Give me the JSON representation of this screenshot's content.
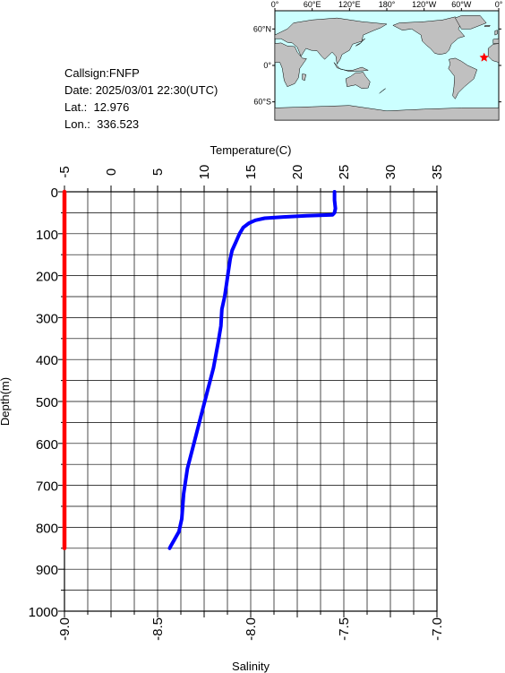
{
  "station": {
    "callsign_line": "Callsign:FNFP",
    "date_label": "Date:",
    "date_value": "2025/03/01 22:30(UTC)",
    "lat_label": "Lat.:",
    "lat_value": "12.976",
    "lon_label": "Lon.:",
    "lon_value": "336.523"
  },
  "map": {
    "top_labels": [
      "0°",
      "60°E",
      "120°E",
      "180°",
      "120°W",
      "60°W",
      "0°"
    ],
    "left_labels": [
      "60°N",
      "0°",
      "60°S"
    ],
    "marker_lon_e": 336.523,
    "marker_lat": 12.976,
    "colors": {
      "ocean": "#ccffff",
      "land": "#c0c0c0",
      "marker": "#ff0000"
    }
  },
  "chart_data": {
    "type": "line",
    "title": "",
    "xlabel": "Temperature(C)",
    "x2label": "Salinity",
    "ylabel": "Depth(m)",
    "temperature_ticks": [
      "-5",
      "0",
      "5",
      "10",
      "15",
      "20",
      "25",
      "30",
      "35"
    ],
    "salinity_ticks": [
      "-9.0",
      "-8.5",
      "-8.0",
      "-7.5",
      "-7.0"
    ],
    "depth_ticks": [
      "0",
      "100",
      "200",
      "300",
      "400",
      "500",
      "600",
      "700",
      "800",
      "900",
      "1000"
    ],
    "xlim_temperature": [
      -5,
      35
    ],
    "xlim_salinity": [
      -9.0,
      -7.0
    ],
    "ylim_depth": [
      0,
      1000
    ],
    "grid": true,
    "series": [
      {
        "variable": "temperature",
        "color": "#0000ff",
        "points": [
          [
            24.0,
            0
          ],
          [
            24.0,
            20
          ],
          [
            24.1,
            40
          ],
          [
            24.0,
            50
          ],
          [
            23.8,
            55
          ],
          [
            21.0,
            57
          ],
          [
            18.5,
            60
          ],
          [
            16.5,
            63
          ],
          [
            15.5,
            68
          ],
          [
            14.8,
            75
          ],
          [
            14.2,
            85
          ],
          [
            13.8,
            100
          ],
          [
            13.4,
            120
          ],
          [
            13.0,
            140
          ],
          [
            12.8,
            160
          ],
          [
            12.6,
            190
          ],
          [
            12.4,
            220
          ],
          [
            12.2,
            250
          ],
          [
            11.9,
            280
          ],
          [
            11.8,
            320
          ],
          [
            11.5,
            360
          ],
          [
            11.0,
            420
          ],
          [
            10.3,
            480
          ],
          [
            9.6,
            540
          ],
          [
            8.9,
            600
          ],
          [
            8.2,
            660
          ],
          [
            7.8,
            720
          ],
          [
            7.6,
            780
          ],
          [
            7.3,
            810
          ],
          [
            6.8,
            830
          ],
          [
            6.4,
            845
          ],
          [
            6.3,
            850
          ]
        ]
      },
      {
        "variable": "salinity",
        "color": "#ff0000",
        "points": [
          [
            -9.0,
            0
          ],
          [
            -9.0,
            850
          ]
        ]
      }
    ]
  }
}
